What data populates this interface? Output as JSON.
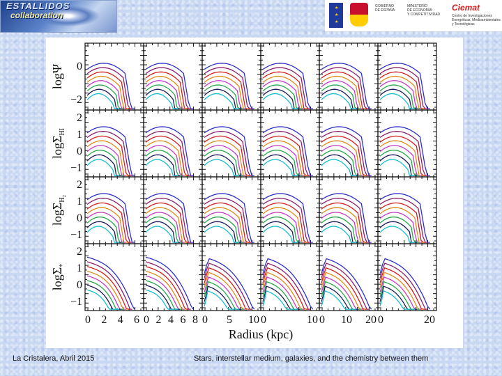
{
  "header": {
    "logo_left": {
      "line1": "ESTALLIDOS",
      "line2": "collaboration"
    },
    "gov": {
      "line1": "GOBIERNO",
      "line2": "DE ESPAÑA",
      "ministry1": "MINISTERIO",
      "ministry2": "DE ECONOMÍA",
      "ministry3": "Y COMPETITIVIDAD"
    },
    "ciemat": {
      "name": "Ciemat",
      "sub1": "Centro de Investigaciones",
      "sub2": "Energéticas, Medioambientales",
      "sub3": "y Tecnológicas"
    }
  },
  "footer": {
    "left": "La Cristalera, Abril 2015",
    "right": "Stars, interstellar medium, galaxies, and the chemistry between them"
  },
  "chart_data": {
    "type": "line",
    "xlabel": "Radius (kpc)",
    "rows": [
      {
        "ylabel": "logΨ",
        "sub": "",
        "ticks": [
          "0",
          "−2"
        ]
      },
      {
        "ylabel": "logΣ",
        "sub": "HI",
        "ticks": [
          "2",
          "1",
          "0",
          "−1"
        ]
      },
      {
        "ylabel": "logΣ",
        "sub": "H₂",
        "ticks": [
          "2",
          "1",
          "0",
          "−1"
        ]
      },
      {
        "ylabel": "logΣ",
        "sub": "*",
        "ticks": [
          "2",
          "1",
          "0",
          "−1"
        ]
      }
    ],
    "columns": [
      {
        "xticks": [
          "0",
          "2",
          "4",
          "6"
        ]
      },
      {
        "xticks": [
          "0",
          "2",
          "4",
          "6",
          "8"
        ]
      },
      {
        "xticks": [
          "0",
          "5",
          "10"
        ]
      },
      {
        "xticks": [
          "0",
          "10"
        ]
      },
      {
        "xticks": [
          "0",
          "10",
          "20"
        ]
      },
      {
        "xticks": [
          "0",
          "20"
        ]
      }
    ],
    "series_colors": [
      "#2f2fc8",
      "#8a1f6e",
      "#d41c1c",
      "#e08a1a",
      "#c23cc6",
      "#26a84a",
      "#1c1c5a",
      "#18bcd0"
    ],
    "series_count": 8
  }
}
